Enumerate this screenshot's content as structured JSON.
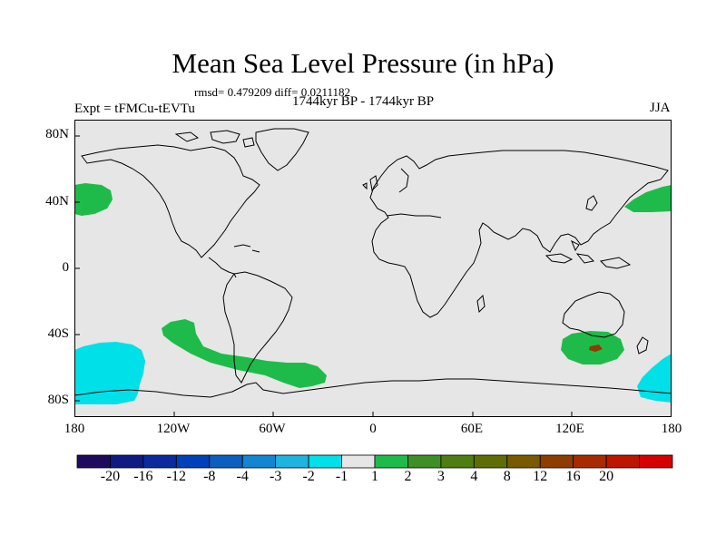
{
  "title": "Mean Sea Level Pressure (in hPa)",
  "stats_text": "rmsd= 0.479209 diff= 0.0211182",
  "experiment_text": "Expt = tFMCu-tEVTu",
  "period_text": "1744kyr BP - 1744kyr BP",
  "season": "JJA",
  "lat_labels": [
    "80N",
    "40N",
    "0",
    "40S",
    "80S"
  ],
  "lon_labels": [
    "180",
    "120W",
    "60W",
    "0",
    "60E",
    "120E",
    "180"
  ],
  "colorbar": {
    "colors": [
      "#1f0a5e",
      "#0f1a82",
      "#0a2a9e",
      "#0040b8",
      "#0a5fc0",
      "#1286d2",
      "#1fb3e0",
      "#00e0e8",
      "#e6e6e6",
      "#1fbb4a",
      "#3e8f28",
      "#4e7d10",
      "#5e6e05",
      "#7a5a00",
      "#8e3c00",
      "#a82a00",
      "#be1500",
      "#d60000"
    ],
    "labels": [
      "-20",
      "-16",
      "-12",
      "-8",
      "-4",
      "-3",
      "-2",
      "-1",
      "1",
      "2",
      "3",
      "4",
      "8",
      "12",
      "16",
      "20"
    ]
  },
  "map_colors": {
    "background": "#e6e6e6",
    "positive_anomaly": "#1fbb4a",
    "negative_anomaly": "#00e0e8",
    "inner_positive": "#8e3c00",
    "coastline": "#000000"
  }
}
